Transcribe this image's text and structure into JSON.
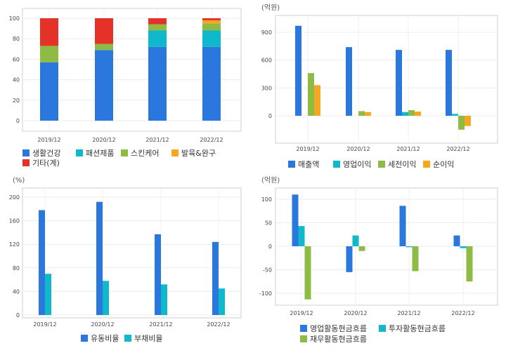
{
  "chart_data": [
    {
      "id": "c1",
      "type": "bar",
      "stacked": true,
      "unit_label": "",
      "categories": [
        "2019/12",
        "2020/12",
        "2021/12",
        "2022/12"
      ],
      "series": [
        {
          "name": "생활건강",
          "color": "#2a78dd",
          "values": [
            57,
            69,
            72,
            72
          ]
        },
        {
          "name": "패션제품",
          "color": "#10b8cc",
          "values": [
            0,
            0,
            16,
            16
          ]
        },
        {
          "name": "스킨케어",
          "color": "#8dbb43",
          "values": [
            16,
            6,
            6,
            7
          ]
        },
        {
          "name": "발육&완구",
          "color": "#f5a623",
          "values": [
            0,
            0,
            0,
            3
          ]
        },
        {
          "name": "기타(계)",
          "color": "#e53228",
          "values": [
            27,
            25,
            6,
            2
          ]
        }
      ],
      "yticks": [
        0,
        20,
        40,
        60,
        80,
        100
      ],
      "ylim": [
        -10,
        110
      ],
      "legend_rows": [
        [
          "생활건강",
          "패션제품",
          "스킨케어",
          "발육&완구"
        ],
        [
          "기타(계)"
        ]
      ]
    },
    {
      "id": "c2",
      "type": "bar",
      "stacked": false,
      "unit_label": "(억원)",
      "categories": [
        "2019/12",
        "2020/12",
        "2021/12",
        "2022/12"
      ],
      "series": [
        {
          "name": "매출액",
          "color": "#2a78dd",
          "values": [
            970,
            740,
            710,
            710
          ]
        },
        {
          "name": "영업이익",
          "color": "#10b8cc",
          "values": [
            0,
            0,
            40,
            20
          ]
        },
        {
          "name": "세전이익",
          "color": "#8dbb43",
          "values": [
            460,
            50,
            60,
            -150
          ]
        },
        {
          "name": "순이익",
          "color": "#f5a623",
          "values": [
            330,
            40,
            45,
            -110
          ]
        }
      ],
      "yticks": [
        0,
        300,
        600,
        900
      ],
      "ylim": [
        -300,
        1000
      ],
      "legend_rows": [
        [
          "매출액",
          "영업이익",
          "세전이익",
          "순이익"
        ]
      ]
    },
    {
      "id": "c3",
      "type": "bar",
      "stacked": false,
      "unit_label": "(%)",
      "categories": [
        "2019/12",
        "2020/12",
        "2021/12",
        "2022/12"
      ],
      "series": [
        {
          "name": "유동비율",
          "color": "#2a78dd",
          "values": [
            178,
            192,
            137,
            124
          ]
        },
        {
          "name": "부채비율",
          "color": "#10b8cc",
          "values": [
            70,
            58,
            52,
            45
          ]
        }
      ],
      "yticks": [
        0,
        40,
        80,
        120,
        160,
        200
      ],
      "ylim": [
        0,
        210
      ],
      "legend_rows": [
        [
          "유동비율",
          "부채비율"
        ]
      ]
    },
    {
      "id": "c4",
      "type": "bar",
      "stacked": false,
      "unit_label": "(억원)",
      "categories": [
        "2019/12",
        "2020/12",
        "2021/12",
        "2022/12"
      ],
      "series": [
        {
          "name": "영업활동현금흐름",
          "color": "#2a78dd",
          "values": [
            110,
            -55,
            86,
            23
          ]
        },
        {
          "name": "투자활동현금흐름",
          "color": "#10b8cc",
          "values": [
            43,
            23,
            -2,
            -4
          ]
        },
        {
          "name": "재무활동현금흐름",
          "color": "#8dbb43",
          "values": [
            -113,
            -10,
            -53,
            -75
          ]
        }
      ],
      "yticks": [
        -100,
        -50,
        0,
        50,
        100
      ],
      "ylim": [
        -125,
        115
      ],
      "legend_rows": [
        [
          "영업활동현금흐름",
          "투자활동현금흐름"
        ],
        [
          "재무활동현금흐름"
        ]
      ]
    }
  ]
}
